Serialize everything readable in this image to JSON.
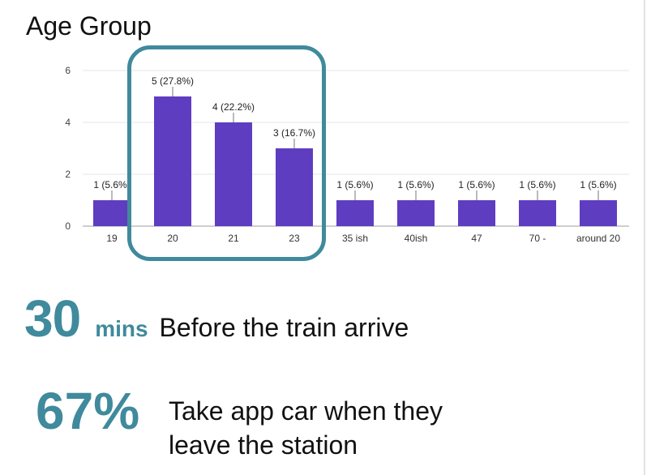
{
  "chart_data": {
    "type": "bar",
    "title": "Age Group",
    "categories": [
      "19",
      "20",
      "21",
      "23",
      "35 ish",
      "40ish",
      "47",
      "70 -",
      "around 20"
    ],
    "values": [
      1,
      5,
      4,
      3,
      1,
      1,
      1,
      1,
      1
    ],
    "data_labels": [
      "1 (5.6%)",
      "5 (27.8%)",
      "4 (22.2%)",
      "3 (16.7%)",
      "1 (5.6%)",
      "1 (5.6%)",
      "1 (5.6%)",
      "1 (5.6%)",
      "1 (5.6%)"
    ],
    "ylim": [
      0,
      6
    ],
    "yticks": [
      0,
      2,
      4,
      6
    ],
    "grid": true,
    "bar_color": "#5e3dc1",
    "highlighted_categories": [
      "20",
      "21",
      "23"
    ],
    "highlight_color": "#3f8a9c"
  },
  "stats": {
    "travel_time": {
      "value": "30",
      "unit": "mins",
      "description": "Before the train arrive"
    },
    "app_car": {
      "value": "67%",
      "description": "Take app car when they leave the station"
    }
  }
}
